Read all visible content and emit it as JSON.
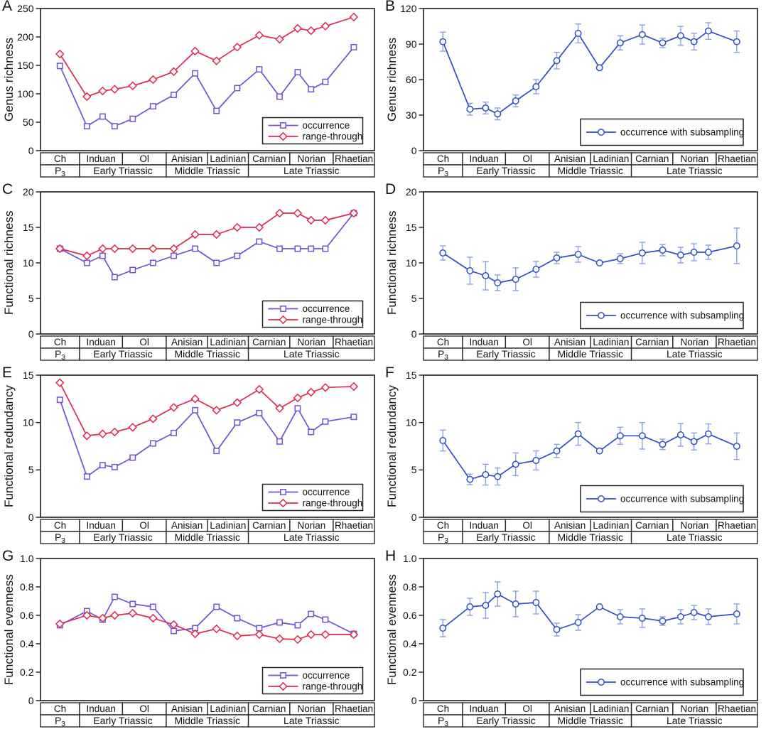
{
  "figure": {
    "description": "Eight-panel Triassic diversity figure",
    "panel_grid": "2 columns x 4 rows"
  },
  "colors": {
    "purple": "#7350d6",
    "red": "#e0294f",
    "blue": "#2f4fc8",
    "blue_light": "#8aa2e2",
    "axis": "#1a1a1a",
    "table_border": "#2a2a2a",
    "background": "#ffffff"
  },
  "x_axis": {
    "point_positions": [
      0.058,
      0.139,
      0.186,
      0.222,
      0.276,
      0.337,
      0.399,
      0.463,
      0.527,
      0.589,
      0.655,
      0.716,
      0.77,
      0.81,
      0.853,
      0.938
    ],
    "point_stage_assignment": [
      "Ch",
      "Induan",
      "Induan",
      "Induan",
      "Ol",
      "Ol",
      "Anisian",
      "Anisian",
      "Ladinian",
      "Ladinian",
      "Carnian",
      "Carnian",
      "Norian",
      "Norian",
      "Norian",
      "Rhaetian"
    ],
    "stages": [
      {
        "label": "Ch",
        "width": 0.117
      },
      {
        "label": "Induan",
        "width": 0.1285
      },
      {
        "label": "Ol",
        "width": 0.131
      },
      {
        "label": "Anisian",
        "width": 0.124
      },
      {
        "label": "Ladinian",
        "width": 0.122
      },
      {
        "label": "Carnian",
        "width": 0.124
      },
      {
        "label": "Norian",
        "width": 0.13
      },
      {
        "label": "Rhaetian",
        "width": 0.1235
      }
    ],
    "eras": [
      {
        "label": "P",
        "sub": "3",
        "width": 0.117
      },
      {
        "label": "Early Triassic",
        "width": 0.2595
      },
      {
        "label": "Middle Triassic",
        "width": 0.246
      },
      {
        "label": "Late Triassic",
        "width": 0.3775
      }
    ]
  },
  "chart_data": [
    {
      "panel": "A",
      "type": "line",
      "ylabel": "Genus richness",
      "ylim": [
        0,
        250
      ],
      "ytick_labels": [
        "0",
        "50",
        "100",
        "150",
        "200",
        "250"
      ],
      "legend": [
        "occurrence",
        "range-through"
      ],
      "legend_position": "lower right",
      "grid": false,
      "series": [
        {
          "name": "occurrence",
          "marker": "square",
          "color": "purple",
          "values": [
            149,
            43,
            60,
            43,
            56,
            78,
            98,
            136,
            70,
            110,
            143,
            95,
            138,
            108,
            121,
            182
          ]
        },
        {
          "name": "range-through",
          "marker": "diamond",
          "color": "red",
          "values": [
            170,
            95,
            105,
            108,
            114,
            125,
            139,
            175,
            158,
            182,
            203,
            196,
            215,
            211,
            219,
            235
          ]
        }
      ]
    },
    {
      "panel": "B",
      "type": "line",
      "ylabel": "Genus richness",
      "ylim": [
        0,
        120
      ],
      "ytick_labels": [
        "0",
        "30",
        "60",
        "90",
        "120"
      ],
      "legend": [
        "occurrence with subsampling"
      ],
      "legend_position": "lower right",
      "grid": false,
      "series": [
        {
          "name": "occurrence with subsampling",
          "marker": "circle",
          "color": "blue",
          "values": [
            92,
            35,
            36,
            31,
            42,
            54,
            76,
            99,
            70,
            91,
            98,
            91,
            97,
            92,
            101,
            92
          ],
          "errors": [
            8,
            5,
            5,
            5,
            5,
            6,
            7,
            8,
            0,
            6,
            8,
            4,
            8,
            7,
            7,
            9
          ]
        }
      ]
    },
    {
      "panel": "C",
      "type": "line",
      "ylabel": "Functional richness",
      "ylim": [
        0,
        20
      ],
      "ytick_labels": [
        "0",
        "5",
        "10",
        "15",
        "20"
      ],
      "legend": [
        "occurrence",
        "range-through"
      ],
      "legend_position": "lower right",
      "grid": false,
      "series": [
        {
          "name": "occurrence",
          "marker": "square",
          "color": "purple",
          "values": [
            12,
            10,
            11,
            8,
            9,
            10,
            11,
            12,
            10,
            11,
            13,
            12,
            12,
            12,
            12,
            17
          ]
        },
        {
          "name": "range-through",
          "marker": "diamond",
          "color": "red",
          "values": [
            12,
            11,
            12,
            12,
            12,
            12,
            12,
            14,
            14,
            15,
            15,
            17,
            17,
            16,
            16,
            17
          ]
        }
      ]
    },
    {
      "panel": "D",
      "type": "line",
      "ylabel": "Functional richness",
      "ylim": [
        0,
        20
      ],
      "ytick_labels": [
        "0",
        "5",
        "10",
        "15",
        "20"
      ],
      "legend": [
        "occurrence with subsampling"
      ],
      "legend_position": "lower right",
      "grid": false,
      "series": [
        {
          "name": "occurrence with subsampling",
          "marker": "circle",
          "color": "blue",
          "values": [
            11.4,
            8.9,
            8.2,
            7.2,
            7.7,
            9.1,
            10.7,
            11.2,
            10,
            10.6,
            11.4,
            11.8,
            11.1,
            11.5,
            11.5,
            12.4
          ],
          "errors": [
            1,
            1.9,
            2,
            1.1,
            1.6,
            1.1,
            0.8,
            1.1,
            0,
            0.7,
            1.5,
            0.8,
            1.1,
            1.2,
            1,
            2.5
          ]
        }
      ]
    },
    {
      "panel": "E",
      "type": "line",
      "ylabel": "Functional redundancy",
      "ylim": [
        0,
        15
      ],
      "ytick_labels": [
        "0",
        "5",
        "10",
        "15"
      ],
      "legend": [
        "occurrence",
        "range-through"
      ],
      "legend_position": "lower right",
      "grid": false,
      "series": [
        {
          "name": "occurrence",
          "marker": "square",
          "color": "purple",
          "values": [
            12.4,
            4.3,
            5.5,
            5.3,
            6.3,
            7.8,
            8.9,
            11.3,
            7,
            10,
            11,
            8,
            11.5,
            9,
            10.1,
            10.6
          ]
        },
        {
          "name": "range-through",
          "marker": "diamond",
          "color": "red",
          "values": [
            14.2,
            8.6,
            8.8,
            9,
            9.5,
            10.4,
            11.6,
            12.5,
            11.3,
            12.1,
            13.5,
            11.5,
            12.6,
            13.2,
            13.7,
            13.8
          ]
        }
      ]
    },
    {
      "panel": "F",
      "type": "line",
      "ylabel": "Functional redundancy",
      "ylim": [
        0,
        15
      ],
      "ytick_labels": [
        "0",
        "5",
        "10",
        "15"
      ],
      "legend": [
        "occurrence with subsampling"
      ],
      "legend_position": "lower right",
      "grid": false,
      "series": [
        {
          "name": "occurrence with subsampling",
          "marker": "circle",
          "color": "blue",
          "values": [
            8.1,
            4,
            4.5,
            4.3,
            5.6,
            6,
            7,
            8.8,
            7,
            8.6,
            8.6,
            7.7,
            8.7,
            8,
            8.8,
            7.5
          ],
          "errors": [
            1.1,
            0.55,
            1.1,
            0.9,
            1.2,
            1,
            0.7,
            1.2,
            0,
            0.9,
            1.4,
            0.55,
            1.2,
            0.9,
            1.05,
            1.4
          ]
        }
      ]
    },
    {
      "panel": "G",
      "type": "line",
      "ylabel": "Functional evenness",
      "ylim": [
        0,
        1.0
      ],
      "ytick_labels": [
        "0",
        "0.2",
        "0.4",
        "0.6",
        "0.8",
        "1.0"
      ],
      "legend": [
        "occurrence",
        "range-through"
      ],
      "legend_position": "lower right",
      "grid": false,
      "series": [
        {
          "name": "occurrence",
          "marker": "square",
          "color": "purple",
          "values": [
            0.53,
            0.63,
            0.57,
            0.73,
            0.68,
            0.66,
            0.49,
            0.51,
            0.66,
            0.58,
            0.51,
            0.55,
            0.53,
            0.61,
            0.57,
            0.47
          ]
        },
        {
          "name": "range-through",
          "marker": "diamond",
          "color": "red",
          "values": [
            0.54,
            0.6,
            0.58,
            0.6,
            0.615,
            0.58,
            0.535,
            0.47,
            0.505,
            0.455,
            0.465,
            0.435,
            0.43,
            0.465,
            0.465,
            0.465
          ]
        }
      ]
    },
    {
      "panel": "H",
      "type": "line",
      "ylabel": "Functional evenness",
      "ylim": [
        0,
        1.0
      ],
      "ytick_labels": [
        "0",
        "0.2",
        "0.4",
        "0.6",
        "0.8",
        "1.0"
      ],
      "legend": [
        "occurrence with subsampling"
      ],
      "legend_position": "lower right",
      "grid": false,
      "series": [
        {
          "name": "occurrence with subsampling",
          "marker": "circle",
          "color": "blue",
          "values": [
            0.51,
            0.66,
            0.67,
            0.75,
            0.68,
            0.69,
            0.5,
            0.55,
            0.66,
            0.59,
            0.58,
            0.56,
            0.59,
            0.62,
            0.59,
            0.61
          ],
          "errors": [
            0.06,
            0.06,
            0.09,
            0.085,
            0.09,
            0.08,
            0.045,
            0.055,
            0,
            0.05,
            0.065,
            0.03,
            0.05,
            0.05,
            0.055,
            0.07
          ]
        }
      ]
    }
  ]
}
